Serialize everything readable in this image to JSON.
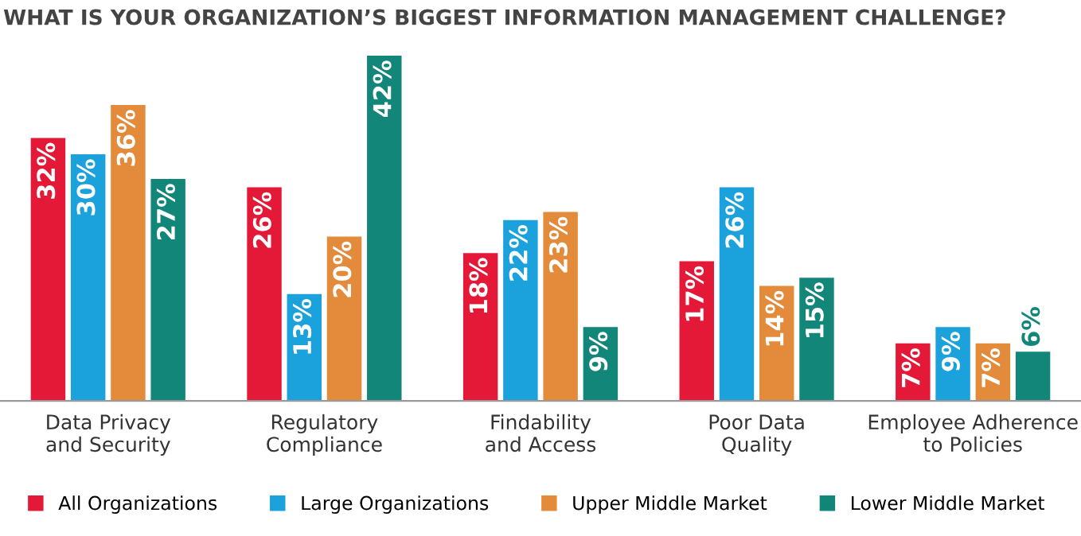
{
  "chart_data": {
    "type": "bar",
    "title": "WHAT IS YOUR ORGANIZATION’S BIGGEST INFORMATION MANAGEMENT CHALLENGE?",
    "categories": [
      "Data Privacy\nand Security",
      "Regulatory\nCompliance",
      "Findability\nand Access",
      "Poor Data\nQuality",
      "Employee Adherence\nto Policies"
    ],
    "series": [
      {
        "name": "All Organizations",
        "color": "#e31937",
        "values": [
          32,
          26,
          18,
          17,
          7
        ],
        "value_labels": [
          "32%",
          "26%",
          "18%",
          "17%",
          "7%"
        ]
      },
      {
        "name": "Large Organizations",
        "color": "#1ba1dc",
        "values": [
          30,
          13,
          22,
          26,
          9
        ],
        "value_labels": [
          "30%",
          "13%",
          "22%",
          "26%",
          "9%"
        ]
      },
      {
        "name": "Upper Middle Market",
        "color": "#e38b3a",
        "values": [
          36,
          20,
          23,
          14,
          7
        ],
        "value_labels": [
          "36%",
          "20%",
          "23%",
          "14%",
          "7%"
        ]
      },
      {
        "name": "Lower Middle Market",
        "color": "#128679",
        "values": [
          27,
          42,
          9,
          15,
          6
        ],
        "value_labels": [
          "27%",
          "42%",
          "9%",
          "15%",
          "6%"
        ]
      }
    ],
    "legend": "bottom",
    "grid": false
  }
}
